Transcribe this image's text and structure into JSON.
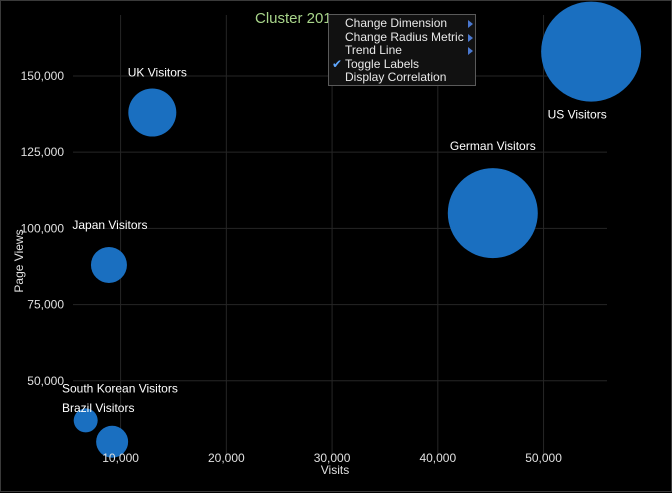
{
  "chart_data": {
    "type": "scatter",
    "title": "Cluster 201",
    "xlabel": "Visits",
    "ylabel": "Page Views",
    "xlim": [
      5500,
      56000
    ],
    "ylim": [
      25000,
      170000
    ],
    "x_ticks": [
      10000,
      20000,
      30000,
      40000,
      50000
    ],
    "x_tick_labels": [
      "10,000",
      "20,000",
      "30,000",
      "40,000",
      "50,000"
    ],
    "y_ticks": [
      50000,
      75000,
      100000,
      125000,
      150000
    ],
    "y_tick_labels": [
      "50,000",
      "75,000",
      "100,000",
      "125,000",
      "150,000"
    ],
    "grid": true,
    "bubble_color": "#1a6fc0",
    "points": [
      {
        "label": "US Visitors",
        "x": 54500,
        "y": 158000,
        "r": 50
      },
      {
        "label": "German Visitors",
        "x": 45200,
        "y": 105000,
        "r": 45
      },
      {
        "label": "UK Visitors",
        "x": 13000,
        "y": 138000,
        "r": 24
      },
      {
        "label": "Japan Visitors",
        "x": 8900,
        "y": 88000,
        "r": 18
      },
      {
        "label": "South Korean Visitors",
        "x": 6700,
        "y": 37000,
        "r": 12
      },
      {
        "label": "Brazil Visitors",
        "x": 9200,
        "y": 30000,
        "r": 16
      }
    ]
  },
  "context_menu": {
    "items": [
      {
        "label": "Change Dimension",
        "submenu": true,
        "checked": false
      },
      {
        "label": "Change Radius Metric",
        "submenu": true,
        "checked": false
      },
      {
        "label": "Trend Line",
        "submenu": true,
        "checked": false
      },
      {
        "label": "Toggle Labels",
        "submenu": false,
        "checked": true
      },
      {
        "label": "Display Correlation",
        "submenu": false,
        "checked": false
      }
    ]
  }
}
